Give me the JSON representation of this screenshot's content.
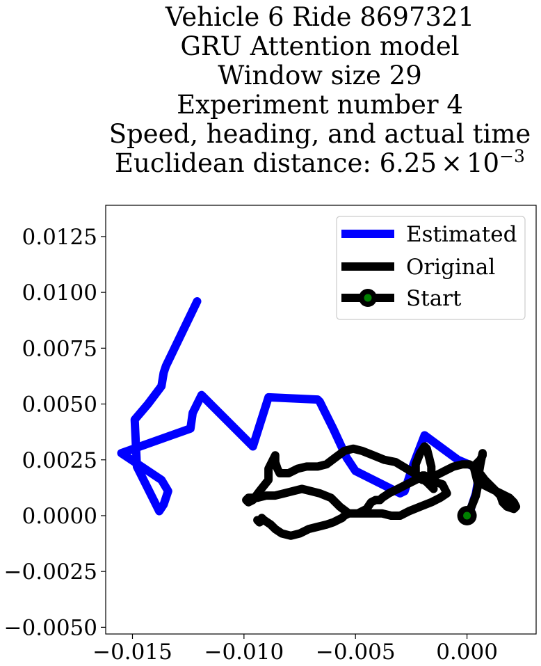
{
  "chart_data": {
    "type": "line",
    "title_lines": [
      "Vehicle 6 Ride 8697321",
      "GRU Attention model",
      "Window size 29",
      "Experiment number 4",
      "Speed, heading, and actual time"
    ],
    "title_metric": {
      "prefix": "Euclidean distance: ",
      "mantissa": "6.25",
      "times": "×",
      "base": "10",
      "exponent": "−3"
    },
    "xlabel": "",
    "ylabel": "",
    "xlim": [
      -0.0162,
      0.0031
    ],
    "ylim": [
      -0.0053,
      0.0139
    ],
    "x_ticks": [
      -0.015,
      -0.01,
      -0.005,
      0.0
    ],
    "x_tick_labels": [
      "−0.015",
      "−0.010",
      "−0.005",
      "0.000"
    ],
    "y_ticks": [
      -0.005,
      -0.0025,
      0.0,
      0.0025,
      0.005,
      0.0075,
      0.01,
      0.0125
    ],
    "y_tick_labels": [
      "−0.0050",
      "−0.0025",
      "0.0000",
      "0.0025",
      "0.0050",
      "0.0075",
      "0.0100",
      "0.0125"
    ],
    "grid": false,
    "legend_position": "top-right",
    "series": [
      {
        "name": "Estimated",
        "color": "#0000ff",
        "x": [
          -0.0121,
          -0.0135,
          -0.0136,
          -0.0137,
          -0.0143,
          -0.0149,
          -0.0148,
          -0.0138,
          -0.0136,
          -0.0134,
          -0.0137,
          -0.0155,
          -0.0124,
          -0.0123,
          -0.0119,
          -0.0096,
          -0.0089,
          -0.0067,
          -0.0066,
          -0.0064,
          -0.006,
          -0.0054,
          -0.005,
          -0.003,
          -0.0028,
          -0.0027,
          -0.0024,
          -0.0019,
          -0.0004,
          0.0003,
          0.0005,
          0.0004,
          0.0002,
          0.0001
        ],
        "y": [
          0.0096,
          0.0067,
          0.0064,
          0.0058,
          0.005,
          0.0043,
          0.0022,
          0.0002,
          0.0005,
          0.0011,
          0.0016,
          0.0028,
          0.0039,
          0.0046,
          0.0054,
          0.0031,
          0.0053,
          0.0052,
          0.0051,
          0.0047,
          0.0039,
          0.0026,
          0.002,
          0.001,
          0.0011,
          0.0014,
          0.0023,
          0.0036,
          0.0025,
          0.0022,
          0.0016,
          0.001,
          0.0004,
          0.0
        ]
      },
      {
        "name": "Original",
        "color": "#000000",
        "x": [
          0.0,
          0.0002,
          0.0004,
          0.0005,
          0.0004,
          0.0003,
          0.0006,
          0.0007,
          0.0007,
          0.0006,
          0.0005,
          0.0007,
          0.0011,
          0.0015,
          0.0019,
          0.0021,
          0.0022,
          0.0021,
          0.0018,
          0.0016,
          0.0015,
          0.0012,
          0.0008,
          0.0005,
          0.0003,
          0.0001,
          -0.0002,
          -0.0006,
          -0.001,
          -0.0014,
          -0.0018,
          -0.002,
          -0.0023,
          -0.0023,
          -0.0021,
          -0.0019,
          -0.0018,
          -0.0017,
          -0.0016,
          -0.0016,
          -0.0015,
          -0.0018,
          -0.0022,
          -0.0027,
          -0.0032,
          -0.0037,
          -0.0042,
          -0.0047,
          -0.0051,
          -0.0055,
          -0.0059,
          -0.0063,
          -0.0067,
          -0.0072,
          -0.0076,
          -0.008,
          -0.0084,
          -0.0085,
          -0.0086,
          -0.0086,
          -0.0087,
          -0.0089,
          -0.0089,
          -0.0093,
          -0.0096,
          -0.0098,
          -0.0099,
          -0.0098,
          -0.0094,
          -0.009,
          -0.0086,
          -0.0082,
          -0.0078,
          -0.0074,
          -0.007,
          -0.0066,
          -0.0061,
          -0.0057,
          -0.0053,
          -0.0049,
          -0.0045,
          -0.0043,
          -0.0041,
          -0.0039,
          -0.0038,
          -0.0035,
          -0.0031,
          -0.0027,
          -0.0023,
          -0.0021,
          -0.002,
          -0.0019,
          -0.0018,
          -0.0016,
          -0.0014,
          -0.0011,
          -0.0009,
          -0.0012,
          -0.0016,
          -0.0021,
          -0.0026,
          -0.003,
          -0.0034,
          -0.0038,
          -0.0042,
          -0.0046,
          -0.005,
          -0.0053,
          -0.0055,
          -0.0056,
          -0.0058,
          -0.006,
          -0.0063,
          -0.0067,
          -0.0071,
          -0.0075,
          -0.0079,
          -0.0083,
          -0.0086,
          -0.0088,
          -0.0091,
          -0.0092,
          -0.0093,
          -0.0094
        ],
        "y": [
          0.0,
          0.0004,
          0.0009,
          0.0014,
          0.0018,
          0.0022,
          0.0025,
          0.0027,
          0.0028,
          0.0023,
          0.0017,
          0.0014,
          0.0012,
          0.001,
          0.0008,
          0.0006,
          0.0004,
          0.0003,
          0.0004,
          0.0006,
          0.0009,
          0.0012,
          0.0016,
          0.002,
          0.0022,
          0.0023,
          0.0023,
          0.0022,
          0.002,
          0.0018,
          0.0017,
          0.0016,
          0.0018,
          0.0023,
          0.0028,
          0.0031,
          0.003,
          0.0026,
          0.0022,
          0.0017,
          0.0012,
          0.0015,
          0.0018,
          0.0021,
          0.0024,
          0.0025,
          0.0027,
          0.0029,
          0.003,
          0.0029,
          0.0026,
          0.0023,
          0.0022,
          0.0022,
          0.0021,
          0.0019,
          0.0019,
          0.0021,
          0.0024,
          0.0027,
          0.0025,
          0.0021,
          0.0016,
          0.0011,
          0.0007,
          0.0006,
          0.0007,
          0.0008,
          0.0008,
          0.0009,
          0.0009,
          0.001,
          0.0011,
          0.0012,
          0.0011,
          0.001,
          0.0008,
          0.0004,
          0.0001,
          0.0001,
          0.0003,
          0.0006,
          0.0007,
          0.0007,
          0.0008,
          0.001,
          0.0012,
          0.0014,
          0.0016,
          0.0017,
          0.0018,
          0.0018,
          0.0017,
          0.0016,
          0.0015,
          0.0014,
          0.001,
          0.0008,
          0.0006,
          0.0004,
          0.0002,
          0.0,
          0.0,
          0.0001,
          0.0001,
          0.0001,
          0.0001,
          0.0001,
          0.0,
          -0.0001,
          -0.0002,
          -0.0003,
          -0.0004,
          -0.0005,
          -0.0006,
          -0.0008,
          -0.0009,
          -0.0008,
          -0.0006,
          -0.0004,
          -0.0002,
          -0.0001,
          -0.0003,
          -0.0002
        ]
      },
      {
        "name": "Start",
        "color": "#000000",
        "marker_color": "#008000",
        "x": [
          0.0
        ],
        "y": [
          0.0
        ]
      }
    ]
  }
}
